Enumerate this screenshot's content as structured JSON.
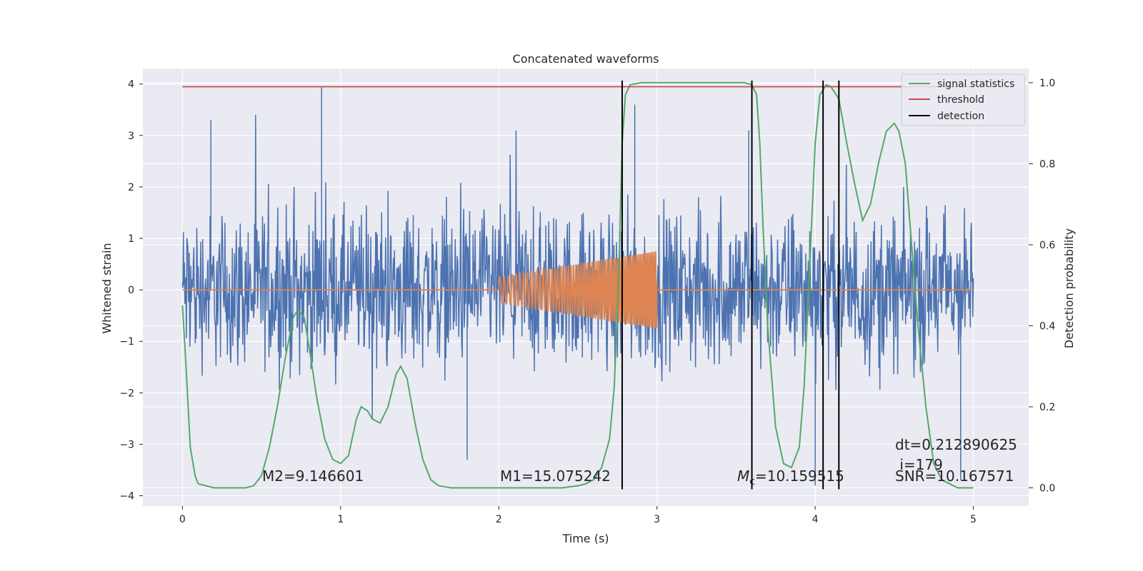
{
  "chart_data": {
    "type": "line",
    "title": "Concatenated waveforms",
    "xlabel": "Time (s)",
    "ylabel_left": "Whitened strain",
    "ylabel_right": "Detection probability",
    "xlim": [
      -0.25,
      5.35
    ],
    "ylim_left": [
      -4.2,
      4.3
    ],
    "ylim_right": [
      -0.045,
      1.035
    ],
    "x_ticks": [
      0,
      1,
      2,
      3,
      4,
      5
    ],
    "y_ticks_left": [
      -4,
      -3,
      -2,
      -1,
      0,
      1,
      2,
      3,
      4
    ],
    "y_ticks_right": [
      0.0,
      0.2,
      0.4,
      0.6,
      0.8,
      1.0
    ],
    "grid": true,
    "legend_position": "top-right",
    "legend": [
      "signal statistics",
      "threshold",
      "detection"
    ],
    "colors": {
      "strain": "#4c72b0",
      "template": "#dd8452",
      "signal_statistics": "#55a868",
      "threshold": "#c44e52",
      "detection": "#000000",
      "background": "#eaeaf2",
      "grid": "#ffffff"
    },
    "strain_series": {
      "x_range": [
        0,
        5
      ],
      "typical_band": [
        -1.5,
        1.8
      ],
      "min": -3.8,
      "max": 3.95,
      "notable_peaks": [
        [
          0.88,
          3.95
        ],
        [
          0.18,
          3.3
        ],
        [
          2.86,
          3.6
        ],
        [
          3.58,
          3.1
        ],
        [
          4.0,
          -3.8
        ],
        [
          4.92,
          -3.7
        ],
        [
          1.8,
          -3.3
        ]
      ]
    },
    "template_series": {
      "x_start": 2.0,
      "x_end": 3.0,
      "amplitude_start": 0.25,
      "amplitude_end": 0.75,
      "freq_start": 35,
      "freq_end": 95
    },
    "signal_statistics": {
      "x": [
        0,
        0.02,
        0.05,
        0.08,
        0.1,
        0.15,
        0.2,
        0.3,
        0.4,
        0.45,
        0.5,
        0.55,
        0.6,
        0.65,
        0.7,
        0.73,
        0.77,
        0.8,
        0.85,
        0.9,
        0.95,
        1.0,
        1.05,
        1.1,
        1.13,
        1.17,
        1.2,
        1.25,
        1.3,
        1.35,
        1.38,
        1.42,
        1.47,
        1.52,
        1.57,
        1.62,
        1.7,
        1.8,
        2.0,
        2.2,
        2.4,
        2.5,
        2.55,
        2.6,
        2.65,
        2.7,
        2.73,
        2.76,
        2.78,
        2.8,
        2.83,
        2.9,
        3.0,
        3.2,
        3.4,
        3.55,
        3.6,
        3.63,
        3.65,
        3.67,
        3.7,
        3.75,
        3.8,
        3.85,
        3.9,
        3.93,
        3.96,
        4.0,
        4.03,
        4.07,
        4.1,
        4.15,
        4.2,
        4.25,
        4.3,
        4.35,
        4.4,
        4.45,
        4.5,
        4.53,
        4.57,
        4.6,
        4.65,
        4.7,
        4.75,
        4.8,
        4.85,
        4.9,
        4.95,
        5.0
      ],
      "y": [
        0.45,
        0.32,
        0.1,
        0.03,
        0.01,
        0.005,
        0.0,
        0.0,
        0.0,
        0.005,
        0.03,
        0.1,
        0.2,
        0.32,
        0.42,
        0.44,
        0.42,
        0.35,
        0.22,
        0.12,
        0.07,
        0.06,
        0.08,
        0.17,
        0.2,
        0.19,
        0.17,
        0.16,
        0.2,
        0.28,
        0.3,
        0.27,
        0.16,
        0.07,
        0.02,
        0.005,
        0.0,
        0.0,
        0.0,
        0.0,
        0.0,
        0.005,
        0.01,
        0.02,
        0.05,
        0.12,
        0.25,
        0.55,
        0.85,
        0.97,
        0.995,
        1.0,
        1.0,
        1.0,
        1.0,
        1.0,
        0.995,
        0.97,
        0.85,
        0.65,
        0.4,
        0.15,
        0.06,
        0.05,
        0.1,
        0.25,
        0.5,
        0.85,
        0.97,
        0.995,
        0.99,
        0.96,
        0.85,
        0.75,
        0.66,
        0.7,
        0.8,
        0.88,
        0.9,
        0.88,
        0.8,
        0.65,
        0.4,
        0.2,
        0.06,
        0.02,
        0.01,
        0.0,
        0.0,
        0.0
      ]
    },
    "threshold": {
      "x": [
        0,
        5
      ],
      "y": 0.99
    },
    "detections": [
      2.78,
      3.6,
      4.05,
      4.15
    ],
    "annotations": {
      "m2": "M2=9.146601",
      "m1": "M1=15.075242",
      "mc_symbol": "M",
      "mc_subscript": "c",
      "mc_value": "=10.159515",
      "dt": "dt=0.212890625",
      "i": " i=179",
      "snr": "SNR=10.167571"
    }
  }
}
